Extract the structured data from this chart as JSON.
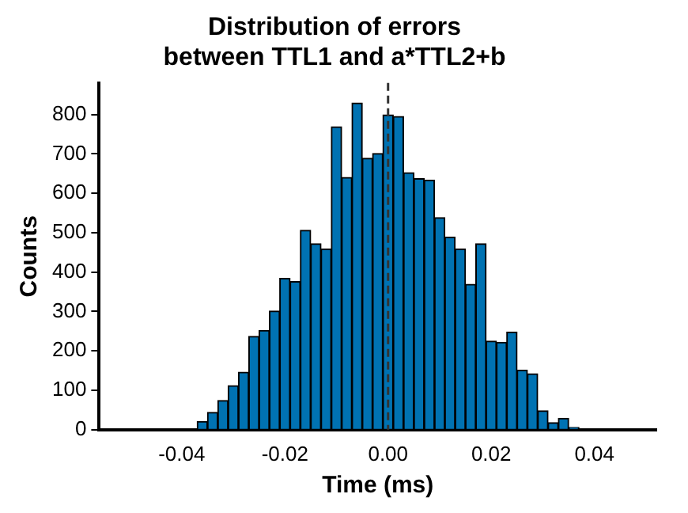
{
  "chart_data": {
    "type": "histogram",
    "title": "Distribution of errors\nbetween TTL1 and a*TTL2+b",
    "xlabel": "Time (ms)",
    "ylabel": "Counts",
    "bins": [
      -0.037,
      -0.035,
      -0.033,
      -0.031,
      -0.029,
      -0.027,
      -0.025,
      -0.023,
      -0.021,
      -0.019,
      -0.017,
      -0.015,
      -0.013,
      -0.011,
      -0.009,
      -0.007,
      -0.005,
      -0.003,
      -0.001,
      0.001,
      0.003,
      0.005,
      0.007,
      0.009,
      0.011,
      0.013,
      0.015,
      0.017,
      0.019,
      0.021,
      0.023,
      0.025,
      0.027,
      0.029,
      0.031,
      0.033,
      0.035,
      0.037
    ],
    "values": [
      21,
      44,
      74,
      112,
      146,
      237,
      252,
      301,
      384,
      376,
      506,
      472,
      459,
      769,
      640,
      829,
      689,
      701,
      799,
      795,
      652,
      637,
      633,
      538,
      489,
      459,
      369,
      472,
      225,
      222,
      248,
      151,
      142,
      48,
      18,
      29,
      6
    ],
    "color": "#0072b2",
    "xlim": [
      -0.056,
      0.052
    ],
    "xticks": [
      -0.04,
      -0.02,
      {
        "value": 0,
        "label": "0.00"
      },
      0.02,
      0.04
    ],
    "ylim": [
      0,
      880
    ],
    "yticks": [
      0,
      100,
      200,
      300,
      400,
      500,
      600,
      700,
      800
    ],
    "ref_lines": [
      {
        "axis": "x",
        "value": 0,
        "color": "#333333",
        "line_style": "dashed"
      }
    ],
    "grid": false,
    "legend": false
  }
}
